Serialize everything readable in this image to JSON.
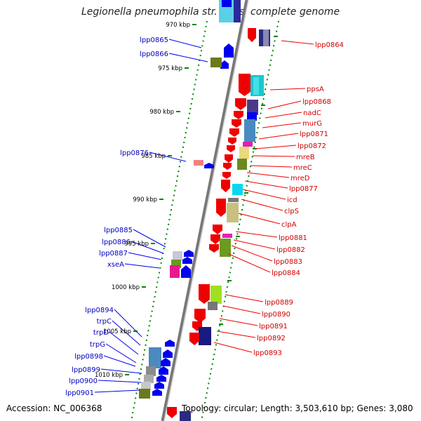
{
  "title": "Legionella pneumophila str. Paris, complete genome",
  "footer": {
    "accession": "Accession: NC_006368",
    "topology": "Topology: circular; Length: 3,503,610 bp; Genes: 3,080"
  },
  "colors": {
    "forward_gene": "#ee0000",
    "reverse_gene": "#0000ee",
    "backbone": "#888888",
    "tick": "#008800"
  },
  "kbp_labels": [
    "970 kbp",
    "975 kbp",
    "980 kbp",
    "985 kbp",
    "990 kbp",
    "995 kbp",
    "1000 kbp",
    "1005 kbp",
    "1010 kbp"
  ],
  "left_genes": [
    "lpp0865",
    "lpp0866",
    "lpp0876",
    "lpp0885",
    "lpp0886",
    "lpp0887",
    "xseA",
    "lpp0894",
    "trpC",
    "trpD",
    "trpG",
    "lpp0898",
    "lpp0899",
    "lpp0900",
    "lpp0901"
  ],
  "right_genes": [
    "lpp0864",
    "ppsA",
    "lpp0868",
    "nadC",
    "murG",
    "lpp0871",
    "lpp0872",
    "mreB",
    "mreC",
    "mreD",
    "lpp0877",
    "icd",
    "clpS",
    "clpA",
    "lpp0881",
    "lpp0882",
    "lpp0883",
    "lpp0884",
    "lpp0889",
    "lpp0890",
    "lpp0891",
    "lpp0892",
    "lpp0893"
  ]
}
